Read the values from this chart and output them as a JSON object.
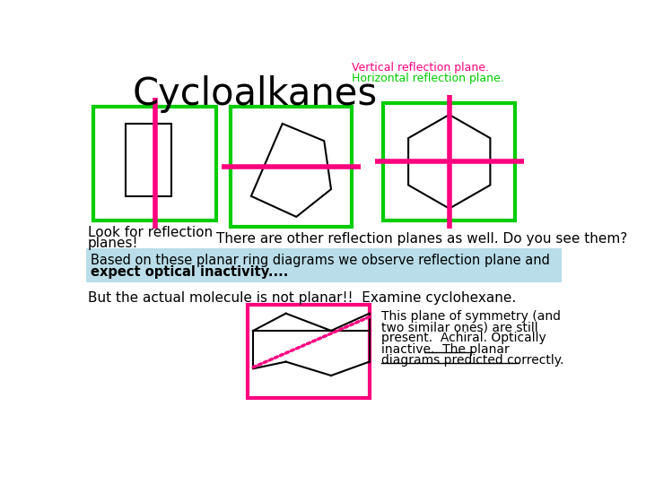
{
  "title": "Cycloalkanes",
  "bg_color": "#ffffff",
  "magenta": "#FF007F",
  "green": "#00CC00",
  "black": "#000000",
  "label_vert": "Vertical reflection plane.",
  "label_horiz": "Horizontal reflection plane.",
  "look_for_line1": "Look for reflection",
  "look_for_line2": "planes!",
  "other_planes": "There are other reflection planes as well. Do you see them?",
  "based_line1": "Based on these planar ring diagrams we observe reflection plane and",
  "based_line2": "expect optical inactivity....",
  "but_text": "But the actual molecule is not planar!!  Examine cyclohexane.",
  "right_line1": "This plane of symmetry (and",
  "right_line2": "two similar ones) are still",
  "right_line3": "present.  Achiral. Optically",
  "right_line4": "inactive.  The planar",
  "right_line5": "diagrams predicted correctly."
}
